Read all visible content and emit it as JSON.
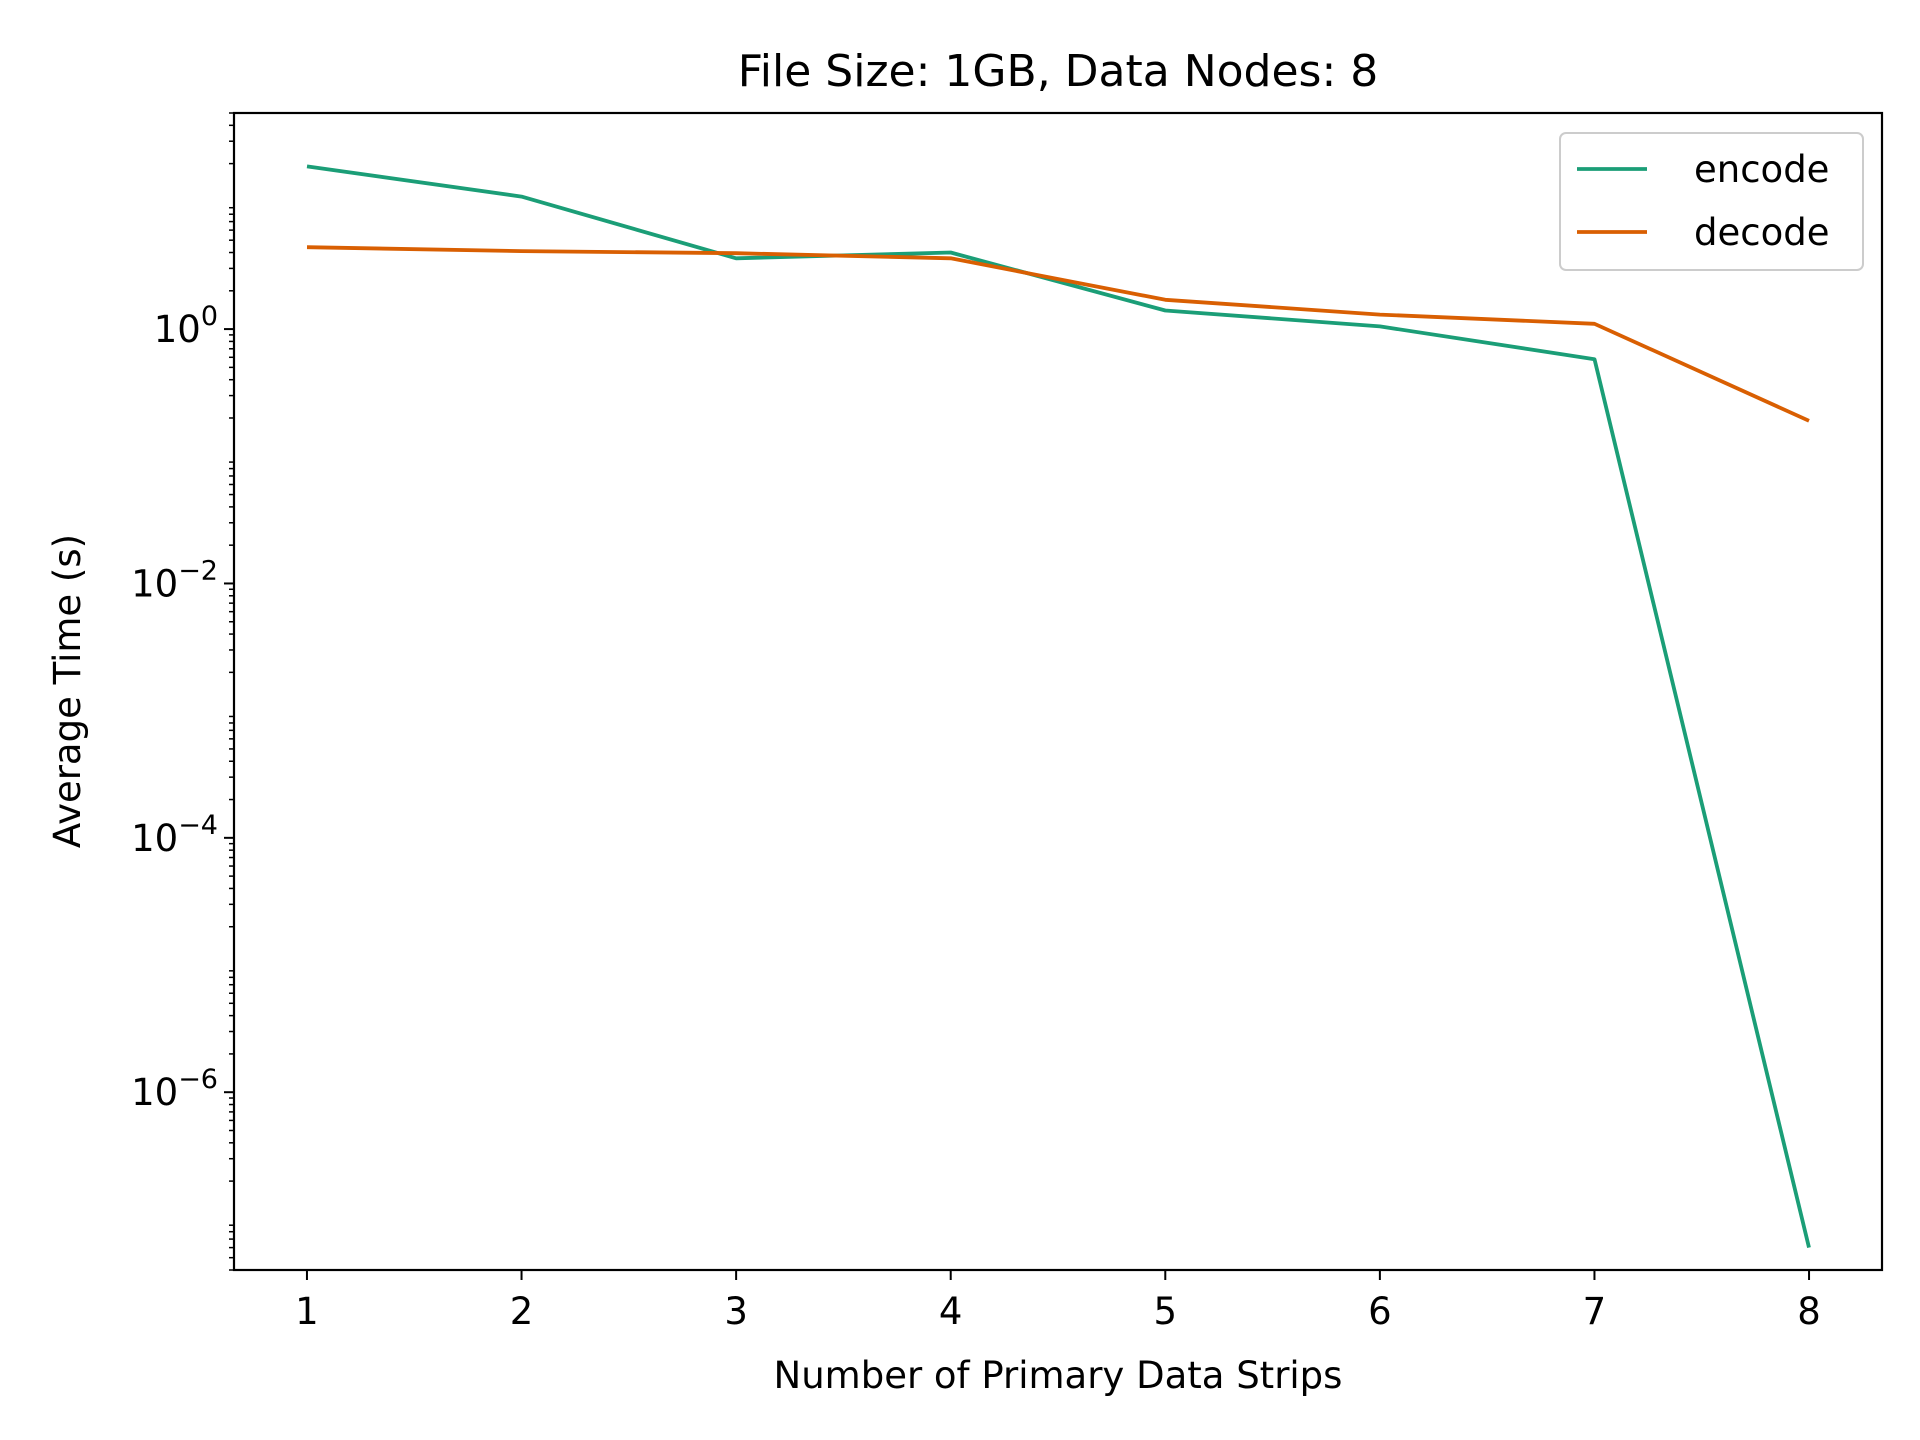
{
  "chart_data": {
    "type": "line",
    "title": "File Size: 1GB, Data Nodes: 8",
    "xlabel": "Number of Primary Data Strips",
    "ylabel": "Average Time (s)",
    "x": [
      1,
      2,
      3,
      4,
      5,
      6,
      7,
      8
    ],
    "xlim": [
      0.66,
      8.34
    ],
    "ylim": [
      4e-08,
      50
    ],
    "yscale": "log",
    "x_ticks": [
      1,
      2,
      3,
      4,
      5,
      6,
      7,
      8
    ],
    "y_ticks": [
      {
        "exponent": 0,
        "label_base": "10",
        "label_exp": "0"
      },
      {
        "exponent": -2,
        "label_base": "10",
        "label_exp": "−2"
      },
      {
        "exponent": -4,
        "label_base": "10",
        "label_exp": "−4"
      },
      {
        "exponent": -6,
        "label_base": "10",
        "label_exp": "−6"
      }
    ],
    "grid": false,
    "legend_position": "top-right",
    "series": [
      {
        "name": "encode",
        "color": "#1b9e77",
        "values": [
          19.0,
          11.0,
          3.6,
          4.0,
          1.4,
          1.05,
          0.58,
          6e-08
        ]
      },
      {
        "name": "decode",
        "color": "#d95f02",
        "values": [
          4.4,
          4.1,
          3.95,
          3.6,
          1.7,
          1.3,
          1.1,
          0.19
        ]
      }
    ]
  }
}
